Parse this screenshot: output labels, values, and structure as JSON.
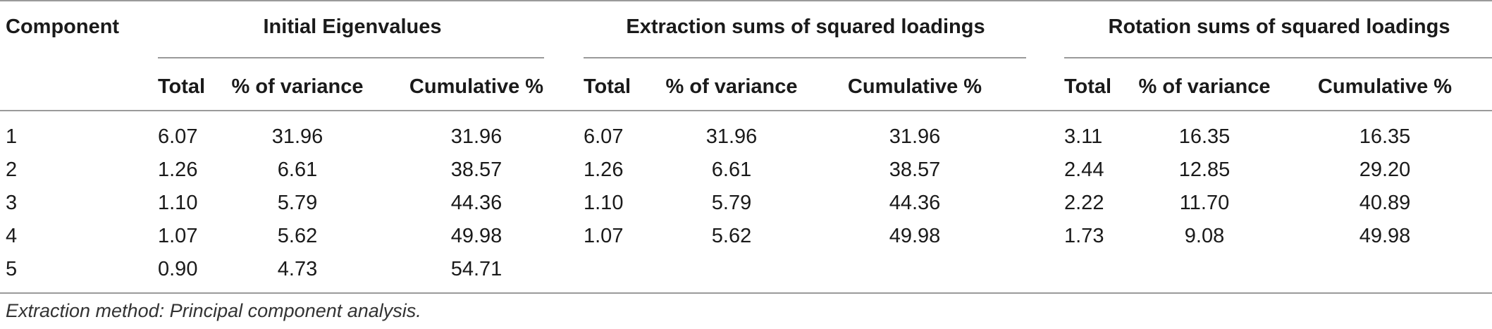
{
  "table": {
    "group_headers": {
      "component": "Component",
      "initial": "Initial Eigenvalues",
      "extraction": "Extraction sums of squared loadings",
      "rotation": "Rotation sums of squared loadings"
    },
    "sub_headers": {
      "initial": [
        "Total",
        "% of variance",
        "Cumulative %"
      ],
      "extraction": [
        "Total",
        "% of variance",
        "Cumulative %"
      ],
      "rotation": [
        "Total",
        "% of variance",
        "Cumulative %"
      ]
    },
    "rows": [
      {
        "component": "1",
        "initial": [
          "6.07",
          "31.96",
          "31.96"
        ],
        "extraction": [
          "6.07",
          "31.96",
          "31.96"
        ],
        "rotation": [
          "3.11",
          "16.35",
          "16.35"
        ]
      },
      {
        "component": "2",
        "initial": [
          "1.26",
          "6.61",
          "38.57"
        ],
        "extraction": [
          "1.26",
          "6.61",
          "38.57"
        ],
        "rotation": [
          "2.44",
          "12.85",
          "29.20"
        ]
      },
      {
        "component": "3",
        "initial": [
          "1.10",
          "5.79",
          "44.36"
        ],
        "extraction": [
          "1.10",
          "5.79",
          "44.36"
        ],
        "rotation": [
          "2.22",
          "11.70",
          "40.89"
        ]
      },
      {
        "component": "4",
        "initial": [
          "1.07",
          "5.62",
          "49.98"
        ],
        "extraction": [
          "1.07",
          "5.62",
          "49.98"
        ],
        "rotation": [
          "1.73",
          "9.08",
          "49.98"
        ]
      },
      {
        "component": "5",
        "initial": [
          "0.90",
          "4.73",
          "54.71"
        ],
        "extraction": [
          "",
          "",
          ""
        ],
        "rotation": [
          "",
          "",
          ""
        ]
      }
    ],
    "footnote": "Extraction method: Principal component analysis."
  }
}
